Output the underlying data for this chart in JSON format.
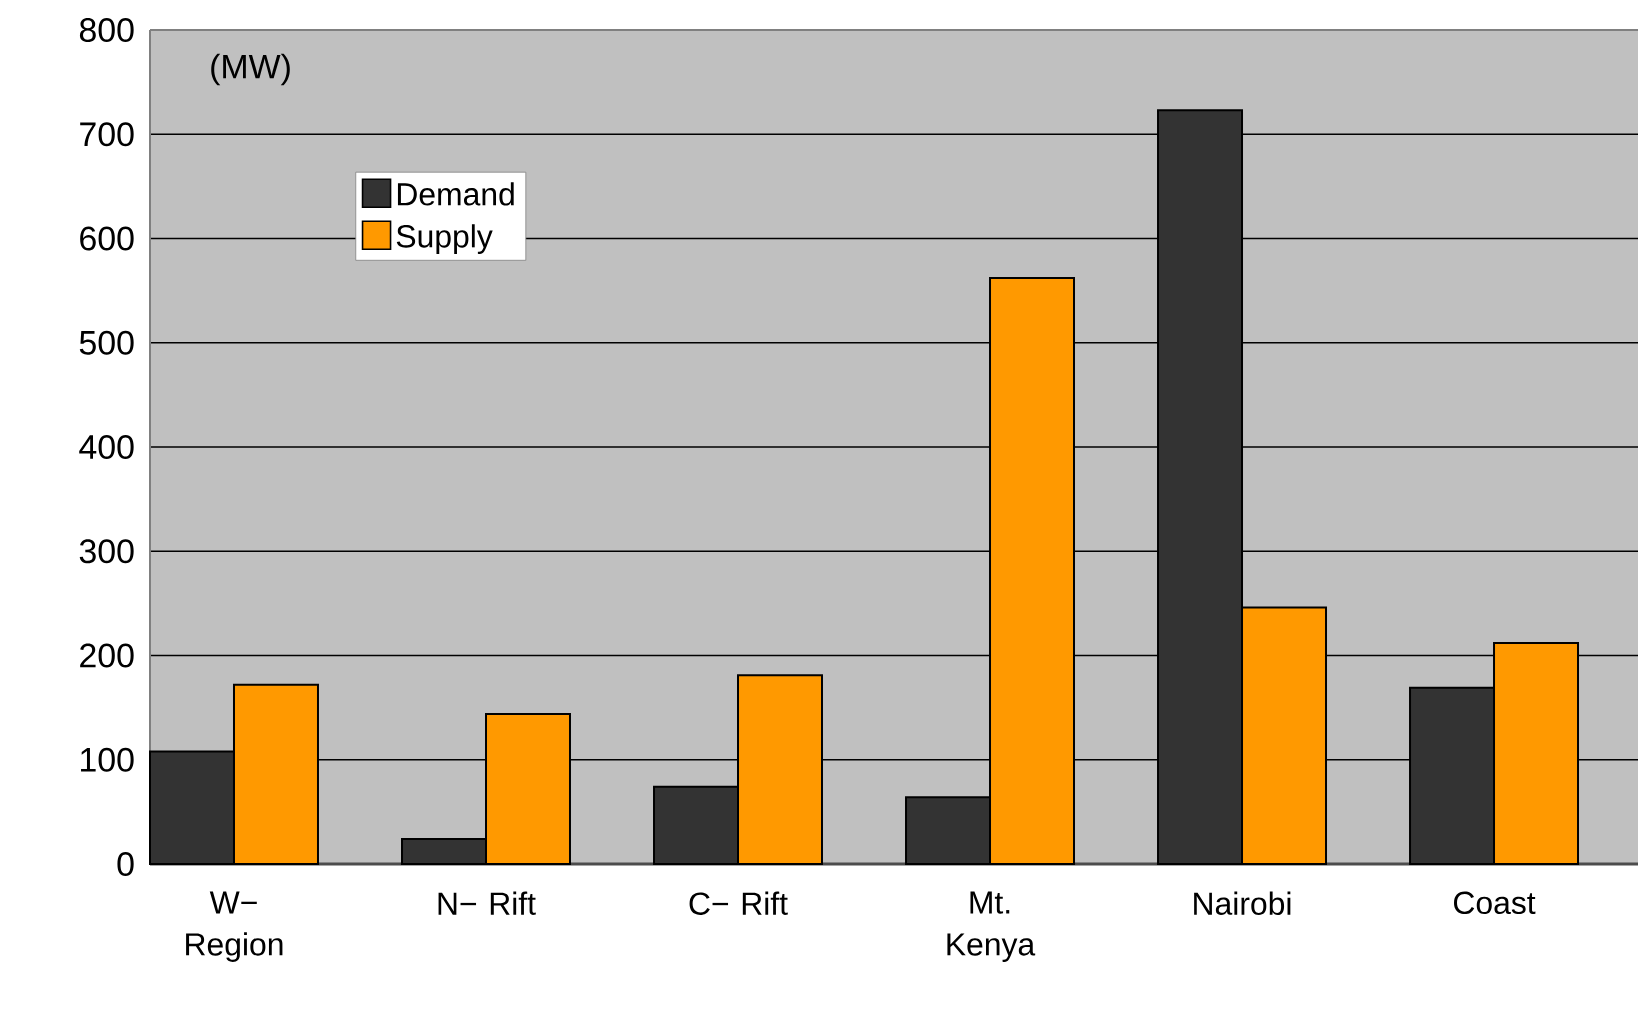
{
  "chart_data": {
    "type": "bar",
    "ylabel": "(MW)",
    "categories": [
      "W− Region",
      "N− Rift",
      "C− Rift",
      "Mt. Kenya",
      "Nairobi",
      "Coast"
    ],
    "series": [
      {
        "name": "Demand",
        "color": "#333333",
        "values": [
          108,
          24,
          74,
          64,
          723,
          169
        ]
      },
      {
        "name": "Supply",
        "color": "#ff9900",
        "values": [
          172,
          144,
          181,
          562,
          246,
          212
        ]
      }
    ],
    "ylim": [
      0,
      800
    ],
    "yticks": [
      0,
      100,
      200,
      300,
      400,
      500,
      600,
      700,
      800
    ],
    "grid": "y",
    "legend": "top left"
  }
}
